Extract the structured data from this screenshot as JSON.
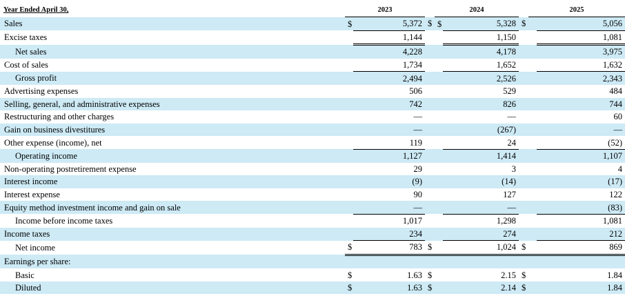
{
  "header": {
    "label": "Year Ended April 30,",
    "years": [
      "2023",
      "2024",
      "2025"
    ]
  },
  "currency_symbol": "$",
  "rows": [
    {
      "label": "Sales",
      "values": [
        "5,372",
        "5,328",
        "5,056"
      ]
    },
    {
      "label": "Excise taxes",
      "values": [
        "1,144",
        "1,150",
        "1,081"
      ]
    },
    {
      "label": "Net sales",
      "values": [
        "4,228",
        "4,178",
        "3,975"
      ]
    },
    {
      "label": "Cost of sales",
      "values": [
        "1,734",
        "1,652",
        "1,632"
      ]
    },
    {
      "label": "Gross profit",
      "values": [
        "2,494",
        "2,526",
        "2,343"
      ]
    },
    {
      "label": "Advertising expenses",
      "values": [
        "506",
        "529",
        "484"
      ]
    },
    {
      "label": "Selling, general, and administrative expenses",
      "values": [
        "742",
        "826",
        "744"
      ]
    },
    {
      "label": "Restructuring and other charges",
      "values": [
        "—",
        "—",
        "60"
      ]
    },
    {
      "label": "Gain on business divestitures",
      "values": [
        "—",
        "(267)",
        "—"
      ]
    },
    {
      "label": "Other expense (income), net",
      "values": [
        "119",
        "24",
        "(52)"
      ]
    },
    {
      "label": "Operating income",
      "values": [
        "1,127",
        "1,414",
        "1,107"
      ]
    },
    {
      "label": "Non-operating postretirement expense",
      "values": [
        "29",
        "3",
        "4"
      ]
    },
    {
      "label": "Interest income",
      "values": [
        "(9)",
        "(14)",
        "(17)"
      ]
    },
    {
      "label": "Interest expense",
      "values": [
        "90",
        "127",
        "122"
      ]
    },
    {
      "label": "Equity method investment income and gain on sale",
      "values": [
        "—",
        "—",
        "(83)"
      ]
    },
    {
      "label": "Income before income taxes",
      "values": [
        "1,017",
        "1,298",
        "1,081"
      ]
    },
    {
      "label": "Income taxes",
      "values": [
        "234",
        "274",
        "212"
      ]
    },
    {
      "label": "Net income",
      "values": [
        "783",
        "1,024",
        "869"
      ]
    },
    {
      "label": "Earnings per share:",
      "values": [
        "",
        "",
        ""
      ]
    },
    {
      "label": "Basic",
      "values": [
        "1.63",
        "2.15",
        "1.84"
      ]
    },
    {
      "label": "Diluted",
      "values": [
        "1.63",
        "2.14",
        "1.84"
      ]
    }
  ]
}
